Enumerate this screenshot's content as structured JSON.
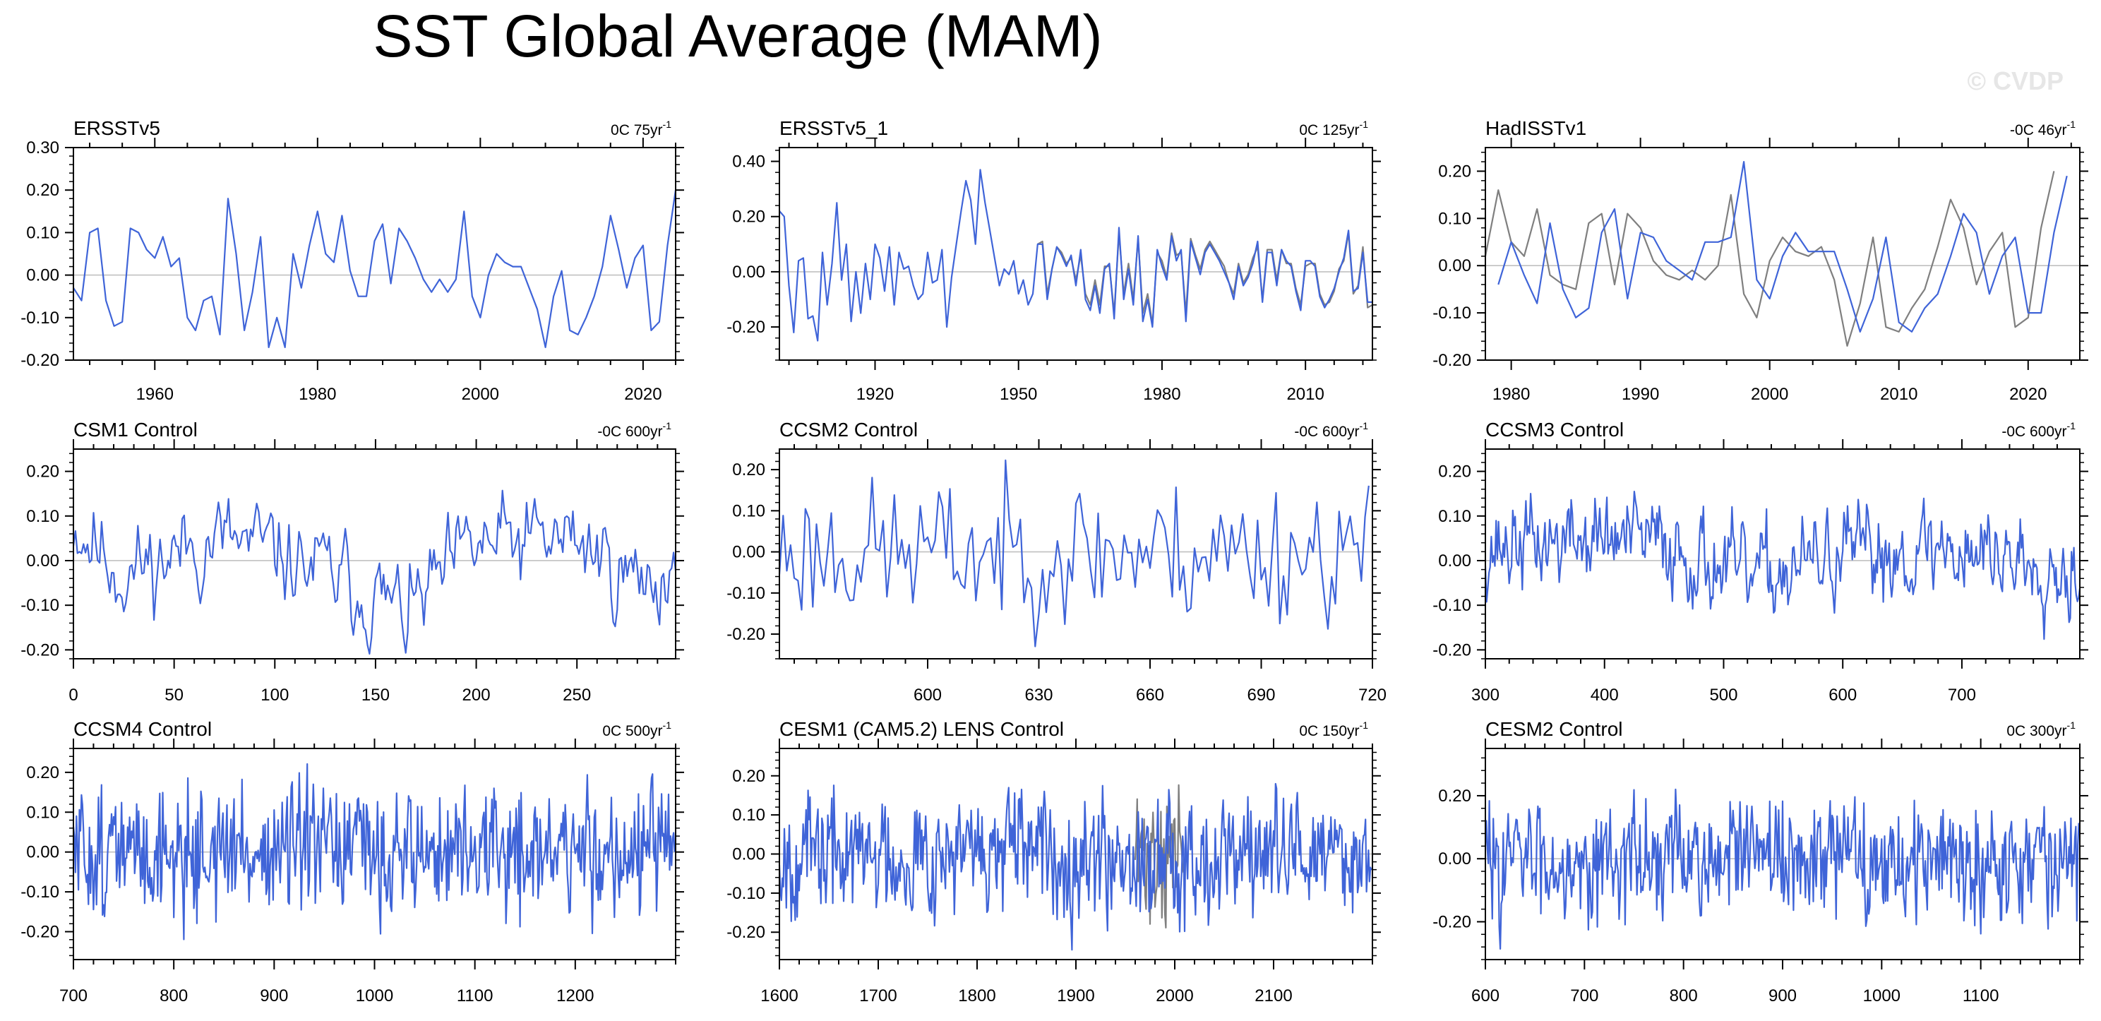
{
  "figure": {
    "title": "SST Global Average (MAM)",
    "watermark": "© CVDP"
  },
  "colors": {
    "series": "#3f64d8",
    "reference": "#7f7f7f",
    "zero_line": "#c0c0c0",
    "frame": "#000000"
  },
  "chart_data": [
    {
      "type": "line",
      "title": "ERSSTv5",
      "annotation": "0C 75yr",
      "annotation_sup": "-1",
      "xlim": [
        1950,
        2024
      ],
      "ylim": [
        -0.2,
        0.3
      ],
      "xticks": [
        1960,
        1980,
        2000,
        2020
      ],
      "yticks": [
        "0.30",
        "0.20",
        "0.10",
        "0.00",
        "-0.10",
        "-0.20"
      ],
      "grid": false,
      "series": [
        {
          "x_start": 1950,
          "x_step": 1,
          "values": [
            -0.03,
            -0.06,
            0.1,
            0.11,
            -0.06,
            -0.12,
            -0.11,
            0.11,
            0.1,
            0.06,
            0.04,
            0.09,
            0.02,
            0.04,
            -0.1,
            -0.13,
            -0.06,
            -0.05,
            -0.14,
            0.18,
            0.05,
            -0.13,
            -0.04,
            0.09,
            -0.17,
            -0.1,
            -0.17,
            0.05,
            -0.03,
            0.07,
            0.15,
            0.05,
            0.03,
            0.14,
            0.01,
            -0.05,
            -0.05,
            0.08,
            0.12,
            -0.02,
            0.11,
            0.08,
            0.04,
            -0.01,
            -0.04,
            -0.01,
            -0.04,
            -0.01,
            0.15,
            -0.05,
            -0.1,
            0.0,
            0.05,
            0.03,
            0.02,
            0.02,
            -0.03,
            -0.08,
            -0.17,
            -0.05,
            0.01,
            -0.13,
            -0.14,
            -0.1,
            -0.05,
            0.02,
            0.14,
            0.06,
            -0.03,
            0.04,
            0.07,
            -0.13,
            -0.11,
            0.07,
            0.2
          ]
        }
      ]
    },
    {
      "type": "line",
      "title": "ERSSTv5_1",
      "annotation": "0C 125yr",
      "annotation_sup": "-1",
      "xlim": [
        1900,
        2024
      ],
      "ylim": [
        -0.32,
        0.45
      ],
      "xticks": [
        1920,
        1950,
        1980,
        2010
      ],
      "yticks": [
        "0.40",
        "0.20",
        "0.00",
        "-0.20"
      ],
      "grid": false,
      "series": [
        {
          "x_start": 1900,
          "x_step": 1,
          "values": [
            0.22,
            0.2,
            -0.05,
            -0.22,
            0.04,
            0.05,
            -0.17,
            -0.16,
            -0.25,
            0.07,
            -0.12,
            0.03,
            0.25,
            -0.03,
            0.1,
            -0.18,
            0.0,
            -0.15,
            0.03,
            -0.1,
            0.1,
            0.05,
            -0.07,
            0.09,
            -0.12,
            0.07,
            0.01,
            0.02,
            -0.05,
            -0.1,
            -0.08,
            0.07,
            -0.04,
            -0.03,
            0.08,
            -0.2,
            -0.02,
            0.1,
            0.22,
            0.33,
            0.26,
            0.1,
            0.37,
            0.25,
            0.15,
            0.05,
            -0.05,
            0.01,
            -0.01,
            0.04,
            -0.08,
            -0.03,
            -0.12,
            -0.08,
            0.1,
            0.1,
            -0.1,
            0.01,
            0.09,
            0.06,
            0.02,
            0.06,
            -0.05,
            0.08,
            -0.1,
            -0.14,
            -0.05,
            -0.15,
            0.01,
            0.03,
            -0.17,
            0.16,
            -0.1,
            0.01,
            -0.12,
            0.13,
            -0.18,
            -0.1,
            -0.2,
            0.08,
            0.02,
            -0.03,
            0.13,
            0.04,
            0.08,
            -0.18,
            0.11,
            0.05,
            -0.01,
            0.07,
            0.1,
            0.07,
            0.04,
            0.0,
            -0.04,
            -0.1,
            0.02,
            -0.05,
            -0.02,
            0.03,
            0.11,
            -0.11,
            0.07,
            0.07,
            -0.05,
            0.08,
            0.04,
            0.02,
            -0.07,
            -0.14,
            0.04,
            0.04,
            0.02,
            -0.09,
            -0.13,
            -0.1,
            -0.06,
            0.0,
            0.05,
            0.15,
            -0.07,
            -0.06,
            0.07,
            -0.11,
            -0.11,
            0.24
          ]
        },
        {
          "x_start": 1954,
          "x_step": 1,
          "reference": true,
          "values": [
            0.1,
            0.11,
            -0.08,
            0.01,
            0.09,
            0.07,
            0.03,
            0.05,
            -0.03,
            0.06,
            -0.08,
            -0.12,
            -0.03,
            -0.12,
            0.02,
            0.02,
            -0.15,
            0.14,
            -0.08,
            0.03,
            -0.1,
            0.12,
            -0.15,
            -0.08,
            -0.19,
            0.07,
            0.04,
            -0.02,
            0.14,
            0.06,
            0.07,
            -0.15,
            0.12,
            0.06,
            0.01,
            0.08,
            0.11,
            0.08,
            0.05,
            0.02,
            -0.04,
            -0.08,
            0.03,
            -0.04,
            -0.01,
            0.05,
            0.09,
            -0.1,
            0.08,
            0.08,
            -0.03,
            0.08,
            0.03,
            0.03,
            -0.06,
            -0.12,
            0.02,
            0.03,
            0.03,
            -0.08,
            -0.12,
            -0.11,
            -0.07,
            0.01,
            0.04,
            0.14,
            -0.08,
            -0.05,
            0.09,
            -0.13,
            -0.12,
            0.2
          ]
        }
      ]
    },
    {
      "type": "line",
      "title": "HadISSTv1",
      "annotation": "-0C 46yr",
      "annotation_sup": "-1",
      "xlim": [
        1978,
        2024
      ],
      "ylim": [
        -0.2,
        0.25
      ],
      "xticks": [
        1980,
        1990,
        2000,
        2010,
        2020
      ],
      "yticks": [
        "0.20",
        "0.10",
        "0.00",
        "-0.10",
        "-0.20"
      ],
      "grid": false,
      "series": [
        {
          "x_start": 1979,
          "x_step": 1,
          "values": [
            -0.04,
            0.05,
            -0.02,
            -0.08,
            0.09,
            -0.05,
            -0.11,
            -0.09,
            0.07,
            0.12,
            -0.07,
            0.07,
            0.06,
            0.01,
            -0.01,
            -0.03,
            0.05,
            0.05,
            0.06,
            0.22,
            -0.03,
            -0.07,
            0.02,
            0.07,
            0.03,
            0.03,
            0.03,
            -0.05,
            -0.14,
            -0.07,
            0.06,
            -0.12,
            -0.14,
            -0.09,
            -0.06,
            0.02,
            0.11,
            0.07,
            -0.06,
            0.02,
            0.06,
            -0.1,
            -0.1,
            0.07,
            0.19
          ]
        },
        {
          "x_start": 1978,
          "x_step": 1,
          "reference": true,
          "values": [
            0.02,
            0.16,
            0.05,
            0.02,
            0.12,
            -0.02,
            -0.04,
            -0.05,
            0.09,
            0.11,
            -0.04,
            0.11,
            0.08,
            0.01,
            -0.02,
            -0.03,
            -0.01,
            -0.03,
            0.0,
            0.15,
            -0.06,
            -0.11,
            0.01,
            0.06,
            0.03,
            0.02,
            0.04,
            -0.03,
            -0.17,
            -0.08,
            0.06,
            -0.13,
            -0.14,
            -0.09,
            -0.05,
            0.04,
            0.14,
            0.08,
            -0.04,
            0.03,
            0.07,
            -0.13,
            -0.11,
            0.08,
            0.2
          ]
        }
      ]
    },
    {
      "type": "line",
      "title": "CSM1 Control",
      "annotation": "-0C 600yr",
      "annotation_sup": "-1",
      "xlim": [
        0,
        299
      ],
      "ylim": [
        -0.22,
        0.25
      ],
      "xticks": [
        0,
        50,
        100,
        150,
        200,
        250
      ],
      "yticks": [
        "0.20",
        "0.10",
        "0.00",
        "-0.10",
        "-0.20"
      ],
      "grid": false,
      "series": [
        {
          "synthetic": {
            "n": 300,
            "x_start": 0,
            "x_step": 1,
            "seed": 11,
            "noise": 0.045,
            "ar": 0.55,
            "slow": [
              [
                0,
                0.09
              ],
              [
                25,
                -0.03
              ],
              [
                70,
                0.05
              ],
              [
                110,
                0.0
              ],
              [
                150,
                -0.08
              ],
              [
                165,
                -0.12
              ],
              [
                200,
                0.03
              ],
              [
                250,
                0.05
              ],
              [
                280,
                -0.05
              ],
              [
                299,
                -0.02
              ]
            ]
          }
        }
      ]
    },
    {
      "type": "line",
      "title": "CCSM2 Control",
      "annotation": "-0C 600yr",
      "annotation_sup": "-1",
      "xlim": [
        560,
        720
      ],
      "ylim": [
        -0.26,
        0.25
      ],
      "xticks": [
        600,
        630,
        660,
        690,
        720
      ],
      "yticks": [
        "0.20",
        "0.10",
        "0.00",
        "-0.10",
        "-0.20"
      ],
      "grid": false,
      "series": [
        {
          "synthetic": {
            "n": 160,
            "x_start": 560,
            "x_step": 1,
            "seed": 23,
            "noise": 0.085,
            "ar": 0.1,
            "slow": [
              [
                560,
                0.0
              ],
              [
                720,
                0.0
              ]
            ]
          }
        }
      ]
    },
    {
      "type": "line",
      "title": "CCSM3 Control",
      "annotation": "-0C 600yr",
      "annotation_sup": "-1",
      "xlim": [
        300,
        799
      ],
      "ylim": [
        -0.22,
        0.25
      ],
      "xticks": [
        300,
        400,
        500,
        600,
        700
      ],
      "yticks": [
        "0.20",
        "0.10",
        "0.00",
        "-0.10",
        "-0.20"
      ],
      "grid": false,
      "series": [
        {
          "synthetic": {
            "n": 500,
            "x_start": 300,
            "x_step": 1,
            "seed": 37,
            "noise": 0.045,
            "ar": 0.5,
            "slow": [
              [
                300,
                0.03
              ],
              [
                400,
                0.05
              ],
              [
                450,
                0.04
              ],
              [
                520,
                -0.04
              ],
              [
                600,
                0.01
              ],
              [
                700,
                0.03
              ],
              [
                799,
                -0.02
              ]
            ]
          }
        }
      ]
    },
    {
      "type": "line",
      "title": "CCSM4 Control",
      "annotation": "0C 500yr",
      "annotation_sup": "-1",
      "xlim": [
        700,
        1300
      ],
      "ylim": [
        -0.27,
        0.26
      ],
      "xticks": [
        700,
        800,
        900,
        1000,
        1100,
        1200
      ],
      "yticks": [
        "0.20",
        "0.10",
        "0.00",
        "-0.10",
        "-0.20"
      ],
      "grid": false,
      "series": [
        {
          "synthetic": {
            "n": 600,
            "x_start": 700,
            "x_step": 1,
            "seed": 51,
            "noise": 0.08,
            "ar": 0.15,
            "slow": [
              [
                700,
                0.0
              ],
              [
                1300,
                0.0
              ]
            ]
          }
        }
      ]
    },
    {
      "type": "line",
      "title": "CESM1 (CAM5.2) LENS Control",
      "annotation": "0C 150yr",
      "annotation_sup": "-1",
      "xlim": [
        1600,
        2200
      ],
      "ylim": [
        -0.27,
        0.27
      ],
      "xticks": [
        1600,
        1700,
        1800,
        1900,
        2000,
        2100
      ],
      "yticks": [
        "0.20",
        "0.10",
        "0.00",
        "-0.10",
        "-0.20"
      ],
      "grid": false,
      "series": [
        {
          "synthetic": {
            "n": 600,
            "x_start": 1600,
            "x_step": 1,
            "seed": 67,
            "noise": 0.075,
            "ar": 0.2,
            "slow": [
              [
                1600,
                0.0
              ],
              [
                2200,
                0.0
              ]
            ]
          }
        },
        {
          "reference": true,
          "synthetic": {
            "n": 50,
            "x_start": 1960,
            "x_step": 1,
            "seed": 71,
            "noise": 0.09,
            "ar": 0.1,
            "slow": [
              [
                1960,
                0.0
              ],
              [
                2010,
                0.0
              ]
            ]
          }
        }
      ]
    },
    {
      "type": "line",
      "title": "CESM2 Control",
      "annotation": "0C 300yr",
      "annotation_sup": "-1",
      "xlim": [
        600,
        1200
      ],
      "ylim": [
        -0.32,
        0.35
      ],
      "xticks": [
        600,
        700,
        800,
        900,
        1000,
        1100
      ],
      "yticks": [
        "0.20",
        "0.00",
        "-0.20"
      ],
      "grid": false,
      "series": [
        {
          "synthetic": {
            "n": 600,
            "x_start": 600,
            "x_step": 1,
            "seed": 83,
            "noise": 0.09,
            "ar": 0.2,
            "slow": [
              [
                600,
                0.0
              ],
              [
                1200,
                0.0
              ]
            ]
          }
        }
      ]
    }
  ]
}
